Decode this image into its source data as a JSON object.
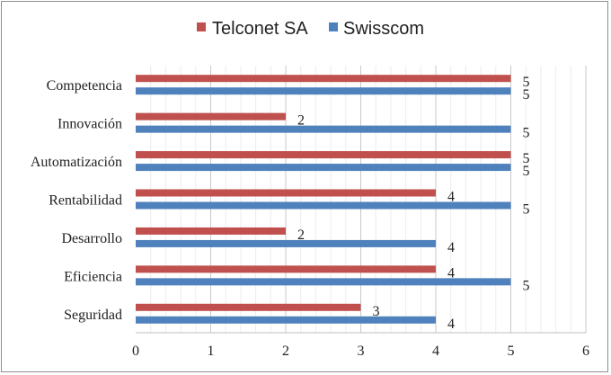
{
  "chart_data": {
    "type": "bar",
    "orientation": "horizontal",
    "title": "",
    "xlabel": "",
    "ylabel": "",
    "xlim": [
      0,
      6
    ],
    "xticks": [
      "0",
      "1",
      "2",
      "3",
      "4",
      "5",
      "6"
    ],
    "grid": "vertical",
    "legend_position": "top",
    "categories": [
      "Competencia",
      "Innovación",
      "Automatización",
      "Rentabilidad",
      "Desarrollo",
      "Eficiencia",
      "Seguridad"
    ],
    "series": [
      {
        "name": "Telconet SA",
        "color": "#c0504d",
        "values": [
          5,
          2,
          5,
          4,
          2,
          4,
          3
        ]
      },
      {
        "name": "Swisscom",
        "color": "#4f81bd",
        "values": [
          5,
          5,
          5,
          5,
          4,
          5,
          4
        ]
      }
    ],
    "data_labels": true
  }
}
